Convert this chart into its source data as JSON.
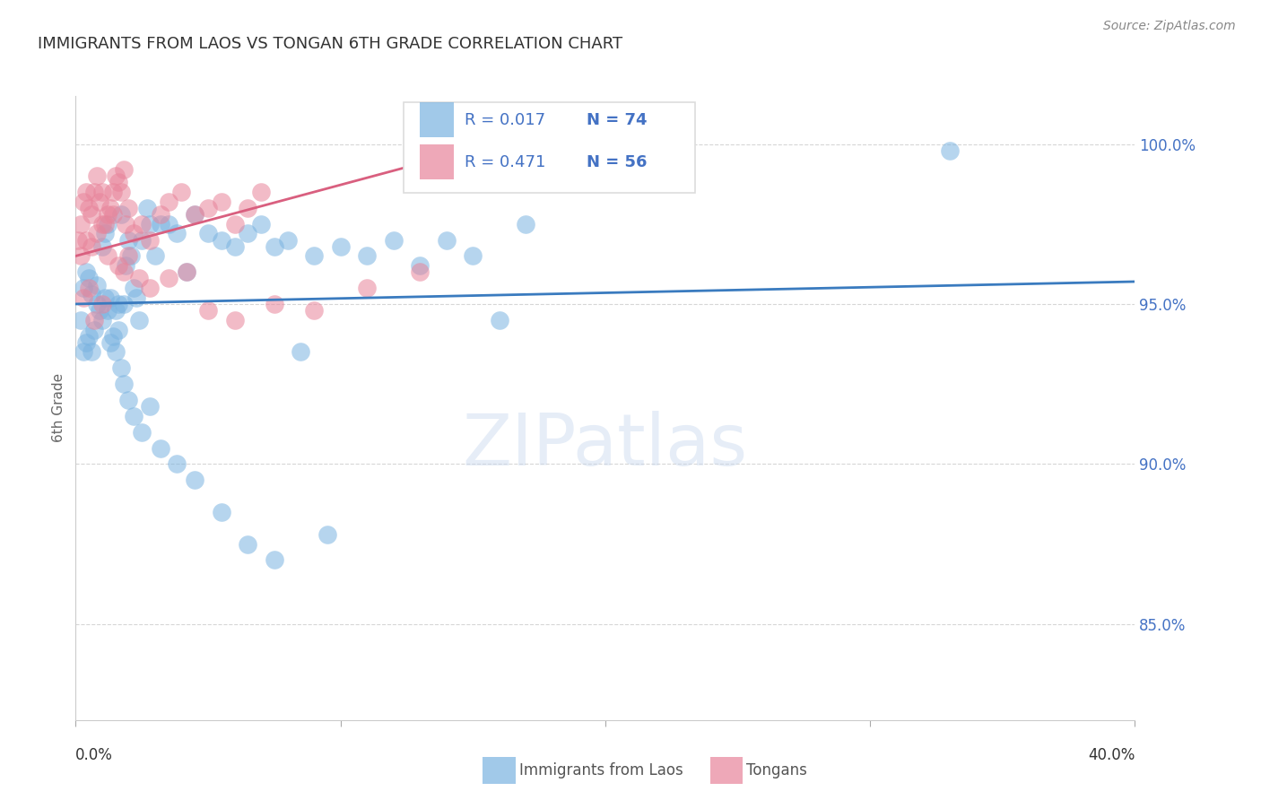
{
  "title": "IMMIGRANTS FROM LAOS VS TONGAN 6TH GRADE CORRELATION CHART",
  "source": "Source: ZipAtlas.com",
  "ylabel": "6th Grade",
  "xmin": 0.0,
  "xmax": 40.0,
  "ymin": 82.0,
  "ymax": 101.5,
  "legend_r_blue": "R = 0.017",
  "legend_n_blue": "N = 74",
  "legend_r_pink": "R = 0.471",
  "legend_n_pink": "N = 56",
  "blue_color": "#7ab3e0",
  "pink_color": "#e8849a",
  "trendline_blue_color": "#3a7bbf",
  "trendline_pink_color": "#d95f7f",
  "background_color": "#ffffff",
  "grid_color": "#cccccc",
  "blue_scatter_x": [
    0.3,
    0.4,
    0.5,
    0.6,
    0.8,
    1.0,
    1.1,
    1.2,
    1.3,
    1.5,
    1.6,
    1.7,
    1.8,
    1.9,
    2.0,
    2.1,
    2.2,
    2.3,
    2.4,
    2.5,
    2.7,
    2.8,
    3.0,
    3.2,
    3.5,
    3.8,
    4.2,
    4.5,
    5.0,
    5.5,
    6.0,
    6.5,
    7.0,
    7.5,
    8.0,
    9.0,
    10.0,
    11.0,
    12.0,
    13.0,
    14.0,
    15.0,
    16.0,
    17.0,
    0.2,
    0.3,
    0.4,
    0.5,
    0.6,
    0.7,
    0.8,
    0.9,
    1.0,
    1.1,
    1.2,
    1.3,
    1.4,
    1.5,
    1.6,
    1.7,
    1.8,
    2.0,
    2.2,
    2.5,
    2.8,
    3.2,
    3.8,
    4.5,
    5.5,
    6.5,
    7.5,
    8.5,
    9.5,
    33.0
  ],
  "blue_scatter_y": [
    95.5,
    96.0,
    95.8,
    95.3,
    95.6,
    96.8,
    97.2,
    97.5,
    95.2,
    94.8,
    95.0,
    97.8,
    95.0,
    96.2,
    97.0,
    96.5,
    95.5,
    95.2,
    94.5,
    97.0,
    98.0,
    97.5,
    96.5,
    97.5,
    97.5,
    97.2,
    96.0,
    97.8,
    97.2,
    97.0,
    96.8,
    97.2,
    97.5,
    96.8,
    97.0,
    96.5,
    96.8,
    96.5,
    97.0,
    96.2,
    97.0,
    96.5,
    94.5,
    97.5,
    94.5,
    93.5,
    93.8,
    94.0,
    93.5,
    94.2,
    95.0,
    94.8,
    94.5,
    95.2,
    94.8,
    93.8,
    94.0,
    93.5,
    94.2,
    93.0,
    92.5,
    92.0,
    91.5,
    91.0,
    91.8,
    90.5,
    90.0,
    89.5,
    88.5,
    87.5,
    87.0,
    93.5,
    87.8,
    99.8
  ],
  "pink_scatter_x": [
    0.1,
    0.2,
    0.3,
    0.4,
    0.5,
    0.6,
    0.7,
    0.8,
    0.9,
    1.0,
    1.1,
    1.2,
    1.3,
    1.4,
    1.5,
    1.6,
    1.7,
    1.8,
    1.9,
    2.0,
    2.2,
    2.5,
    2.8,
    3.2,
    3.5,
    4.0,
    4.5,
    5.0,
    5.5,
    6.0,
    6.5,
    7.0,
    0.2,
    0.4,
    0.6,
    0.8,
    1.0,
    1.2,
    1.4,
    1.6,
    1.8,
    2.0,
    2.4,
    2.8,
    3.5,
    4.2,
    5.0,
    6.0,
    7.5,
    9.0,
    11.0,
    13.0,
    0.3,
    0.5,
    0.7,
    1.0
  ],
  "pink_scatter_y": [
    97.0,
    97.5,
    98.2,
    98.5,
    98.0,
    97.8,
    98.5,
    99.0,
    98.2,
    98.5,
    97.5,
    97.8,
    98.0,
    98.5,
    99.0,
    98.8,
    98.5,
    99.2,
    97.5,
    98.0,
    97.2,
    97.5,
    97.0,
    97.8,
    98.2,
    98.5,
    97.8,
    98.0,
    98.2,
    97.5,
    98.0,
    98.5,
    96.5,
    97.0,
    96.8,
    97.2,
    97.5,
    96.5,
    97.8,
    96.2,
    96.0,
    96.5,
    95.8,
    95.5,
    95.8,
    96.0,
    94.8,
    94.5,
    95.0,
    94.8,
    95.5,
    96.0,
    95.2,
    95.5,
    94.5,
    95.0
  ],
  "blue_trend_x": [
    0.0,
    40.0
  ],
  "blue_trend_y": [
    95.0,
    95.7
  ],
  "pink_trend_x": [
    0.0,
    13.5
  ],
  "pink_trend_y": [
    96.5,
    99.5
  ],
  "yticks": [
    85,
    90,
    95,
    100
  ],
  "watermark": "ZIPatlas"
}
